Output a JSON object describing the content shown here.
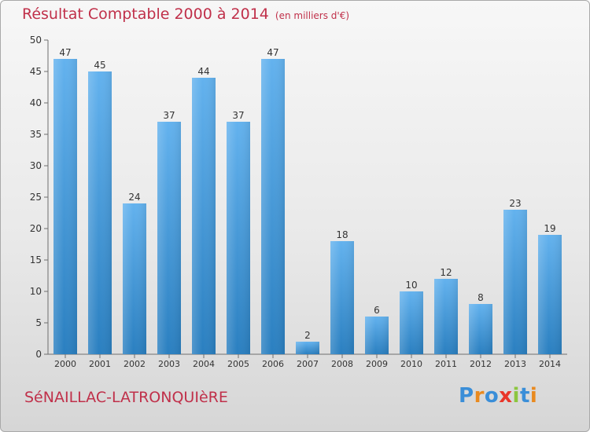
{
  "chart_data": {
    "type": "bar",
    "title": "Résultat Comptable 2000 à 2014",
    "subtitle": "(en milliers d'€)",
    "categories": [
      "2000",
      "2001",
      "2002",
      "2003",
      "2004",
      "2005",
      "2006",
      "2007",
      "2008",
      "2009",
      "2010",
      "2011",
      "2012",
      "2013",
      "2014"
    ],
    "values": [
      47,
      45,
      24,
      37,
      44,
      37,
      47,
      2,
      18,
      6,
      10,
      12,
      8,
      23,
      19
    ],
    "ylim": [
      0,
      50
    ],
    "yticks": [
      0,
      5,
      10,
      15,
      20,
      25,
      30,
      35,
      40,
      45,
      50
    ],
    "grid": false,
    "xlabel": "",
    "ylabel": ""
  },
  "footer": {
    "place_name": "SéNAILLAC-LATRONQUIèRE"
  },
  "logo": {
    "letters": [
      "P",
      "r",
      "o",
      "x",
      "i",
      "t",
      "i"
    ],
    "colors": [
      "#3a8ed8",
      "#e98a1f",
      "#3a8ed8",
      "#e9362a",
      "#8cc63f",
      "#3a8ed8",
      "#e98a1f"
    ]
  },
  "colors": {
    "bar_light": "#63b2ee",
    "bar_dark": "#2a7fc0",
    "title": "#c0304a"
  }
}
